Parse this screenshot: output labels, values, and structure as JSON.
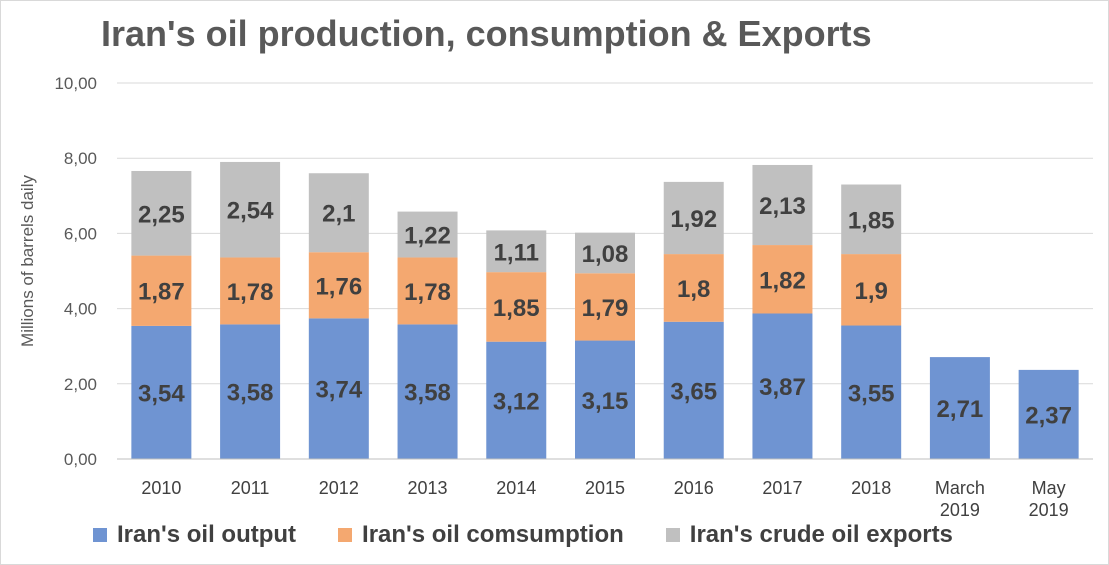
{
  "chart_data": {
    "type": "stacked-bar",
    "title": "Iran's oil production, consumption & Exports",
    "ylabel": "Millions of barrels daily",
    "xlabel": "",
    "ylim": [
      0,
      10
    ],
    "yticks": [
      "0,00",
      "2,00",
      "4,00",
      "6,00",
      "8,00",
      "10,00"
    ],
    "grid": true,
    "legend_position": "bottom",
    "categories": [
      "2010",
      "2011",
      "2012",
      "2013",
      "2014",
      "2015",
      "2016",
      "2017",
      "2018",
      "March 2019",
      "May 2019"
    ],
    "series": [
      {
        "name": "Iran's oil output",
        "color": "#6f94d2",
        "values": [
          3.54,
          3.58,
          3.74,
          3.58,
          3.12,
          3.15,
          3.65,
          3.87,
          3.55,
          2.71,
          2.37
        ],
        "labels": [
          "3,54",
          "3,58",
          "3,74",
          "3,58",
          "3,12",
          "3,15",
          "3,65",
          "3,87",
          "3,55",
          "2,71",
          "2,37"
        ]
      },
      {
        "name": "Iran's oil comsumption",
        "color": "#f4a870",
        "values": [
          1.87,
          1.78,
          1.76,
          1.78,
          1.85,
          1.79,
          1.8,
          1.82,
          1.9,
          null,
          null
        ],
        "labels": [
          "1,87",
          "1,78",
          "1,76",
          "1,78",
          "1,85",
          "1,79",
          "1,8",
          "1,82",
          "1,9",
          "",
          ""
        ]
      },
      {
        "name": "Iran's crude oil exports",
        "color": "#c0c0c0",
        "values": [
          2.25,
          2.54,
          2.1,
          1.22,
          1.11,
          1.08,
          1.92,
          2.13,
          1.85,
          null,
          null
        ],
        "labels": [
          "2,25",
          "2,54",
          "2,1",
          "1,22",
          "1,11",
          "1,08",
          "1,92",
          "2,13",
          "1,85",
          "",
          ""
        ]
      }
    ]
  }
}
